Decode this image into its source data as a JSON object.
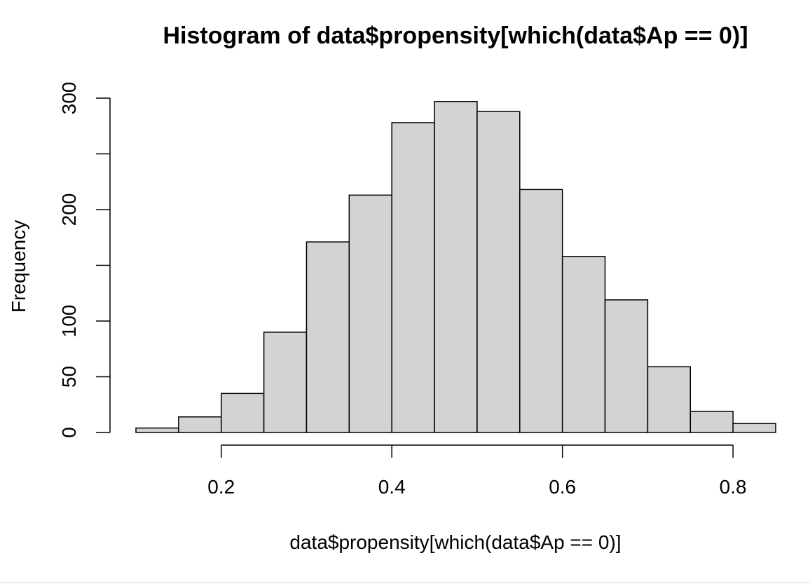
{
  "chart_data": {
    "type": "bar",
    "title": "Histogram of data$propensity[which(data$Ap == 0)]",
    "xlabel": "data$propensity[which(data$Ap == 0)]",
    "ylabel": "Frequency",
    "bins": [
      {
        "x0": 0.1,
        "x1": 0.15,
        "count": 4
      },
      {
        "x0": 0.15,
        "x1": 0.2,
        "count": 14
      },
      {
        "x0": 0.2,
        "x1": 0.25,
        "count": 35
      },
      {
        "x0": 0.25,
        "x1": 0.3,
        "count": 90
      },
      {
        "x0": 0.3,
        "x1": 0.35,
        "count": 171
      },
      {
        "x0": 0.35,
        "x1": 0.4,
        "count": 213
      },
      {
        "x0": 0.4,
        "x1": 0.45,
        "count": 278
      },
      {
        "x0": 0.45,
        "x1": 0.5,
        "count": 297
      },
      {
        "x0": 0.5,
        "x1": 0.55,
        "count": 288
      },
      {
        "x0": 0.55,
        "x1": 0.6,
        "count": 218
      },
      {
        "x0": 0.6,
        "x1": 0.65,
        "count": 158
      },
      {
        "x0": 0.65,
        "x1": 0.7,
        "count": 119
      },
      {
        "x0": 0.7,
        "x1": 0.75,
        "count": 59
      },
      {
        "x0": 0.75,
        "x1": 0.8,
        "count": 19
      },
      {
        "x0": 0.8,
        "x1": 0.85,
        "count": 8
      }
    ],
    "xlim": [
      0.1,
      0.85
    ],
    "ylim": [
      0,
      300
    ],
    "x_ticks": [
      0.2,
      0.4,
      0.6,
      0.8
    ],
    "x_tick_labels": [
      "0.2",
      "0.4",
      "0.6",
      "0.8"
    ],
    "y_ticks": [
      0,
      50,
      100,
      150,
      200,
      250,
      300
    ],
    "y_tick_labels": [
      "0",
      "50",
      "100",
      "",
      "200",
      "",
      "300"
    ],
    "bar_fill": "#d3d3d3",
    "bar_stroke": "#000000",
    "grid": false
  }
}
